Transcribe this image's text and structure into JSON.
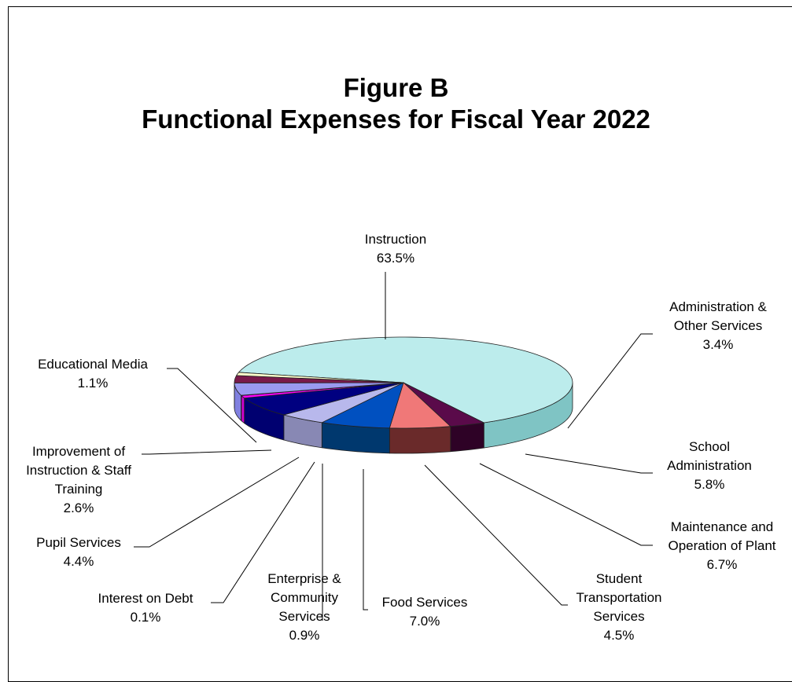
{
  "chart_data": {
    "type": "pie",
    "title": "Figure B",
    "subtitle": "Functional Expenses for Fiscal Year 2022",
    "slices": [
      {
        "label": "Instruction",
        "value": 63.5,
        "display": "63.5%",
        "color": "#bcecec",
        "side": "#7fc4c4"
      },
      {
        "label": "Administration & Other Services",
        "value": 3.4,
        "display": "3.4%",
        "color": "#5a0a4a",
        "side": "#2e0226"
      },
      {
        "label": "School Administration",
        "value": 5.8,
        "display": "5.8%",
        "color": "#f07878",
        "side": "#6a2a2a"
      },
      {
        "label": "Maintenance and Operation of Plant",
        "value": 6.7,
        "display": "6.7%",
        "color": "#0050c0",
        "side": "#00386e"
      },
      {
        "label": "Student Transportation Services",
        "value": 4.5,
        "display": "4.5%",
        "color": "#b8b8ec",
        "side": "#8888b4"
      },
      {
        "label": "Food Services",
        "value": 7.0,
        "display": "7.0%",
        "color": "#000080",
        "side": "#000070"
      },
      {
        "label": "Enterprise & Community Services",
        "value": 0.9,
        "display": "0.9%",
        "color": "#ff00ff",
        "side": "#d000d0"
      },
      {
        "label": "Interest on Debt",
        "value": 0.1,
        "display": "0.1%",
        "color": "#0a1a4a",
        "side": "#000820"
      },
      {
        "label": "Pupil Services",
        "value": 4.4,
        "display": "4.4%",
        "color": "#9a9af0",
        "side": "#8080e0"
      },
      {
        "label": "Improvement of Instruction & Staff Training",
        "value": 2.6,
        "display": "2.6%",
        "color": "#7a1a4a",
        "side": "#8a2a5a"
      },
      {
        "label": "Educational Media",
        "value": 1.1,
        "display": "1.1%",
        "color": "#ffffcc",
        "side": "#f4f4c0"
      }
    ],
    "legend": "none"
  },
  "labels": [
    {
      "lines": [
        "Instruction"
      ]
    },
    {
      "lines": [
        "Administration &",
        "Other Services"
      ]
    },
    {
      "lines": [
        "School",
        "Administration"
      ]
    },
    {
      "lines": [
        "Maintenance and",
        "Operation of Plant"
      ]
    },
    {
      "lines": [
        "Student",
        "Transportation",
        "Services"
      ]
    },
    {
      "lines": [
        "Food Services"
      ]
    },
    {
      "lines": [
        "Enterprise &",
        "Community",
        "Services"
      ]
    },
    {
      "lines": [
        "Interest on Debt"
      ]
    },
    {
      "lines": [
        "Pupil Services"
      ]
    },
    {
      "lines": [
        "Improvement of",
        "Instruction & Staff",
        "Training"
      ]
    },
    {
      "lines": [
        "Educational Media"
      ]
    }
  ]
}
